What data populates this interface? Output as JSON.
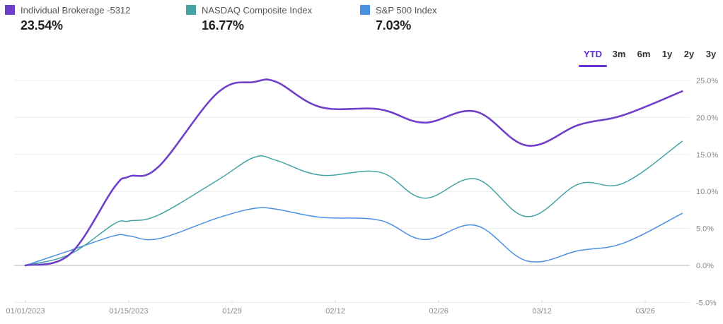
{
  "legend": [
    {
      "label": "Individual Brokerage -5312",
      "value": "23.54%",
      "color": "#6e40c9"
    },
    {
      "label": "NASDAQ Composite Index",
      "value": "16.77%",
      "color": "#46a3a3"
    },
    {
      "label": "S&P 500 Index",
      "value": "7.03%",
      "color": "#4a90e2"
    }
  ],
  "ranges": {
    "active": "YTD",
    "items": [
      "YTD",
      "3m",
      "6m",
      "1y",
      "2y",
      "3y"
    ]
  },
  "colors": {
    "accent": "#6a35d9",
    "brokerage": "#6e40c9",
    "nasdaq": "#46a3a3",
    "sp500": "#4a90e2",
    "grid": "#ececec",
    "zero_line": "#b5b5b5"
  },
  "chart_data": {
    "type": "line",
    "title": "",
    "xlabel": "",
    "ylabel": "",
    "ylim": [
      -5,
      25
    ],
    "grid": true,
    "legend_position": "top",
    "y_ticks": [
      "25.0%",
      "20.0%",
      "15.0%",
      "10.0%",
      "5.0%",
      "0.0%",
      "-5.0%"
    ],
    "y_tick_values": [
      25,
      20,
      15,
      10,
      5,
      0,
      -5
    ],
    "x_ticks": [
      "01/01/2023",
      "01/15/2023",
      "01/29",
      "02/12",
      "02/26",
      "03/12",
      "03/26"
    ],
    "x_tick_days": [
      0,
      14,
      28,
      42,
      56,
      70,
      84
    ],
    "x_days": [
      0,
      6,
      12,
      14,
      18,
      26,
      31,
      34,
      40,
      48,
      54,
      61,
      68,
      75,
      81,
      89
    ],
    "series": [
      {
        "name": "Individual Brokerage -5312",
        "color": "#6e40c9",
        "width": 2.6,
        "values": [
          0,
          1.5,
          10.5,
          12.0,
          13.3,
          23.3,
          24.8,
          24.8,
          21.4,
          21.1,
          19.3,
          20.8,
          16.2,
          19.0,
          20.3,
          23.54
        ]
      },
      {
        "name": "NASDAQ Composite Index",
        "color": "#46a3a3",
        "width": 1.5,
        "values": [
          0,
          1.5,
          5.6,
          6.0,
          6.8,
          11.5,
          14.6,
          14.2,
          12.2,
          12.6,
          9.1,
          11.7,
          6.6,
          11.0,
          11.1,
          16.77
        ]
      },
      {
        "name": "S&P 500 Index",
        "color": "#4a90e2",
        "width": 1.5,
        "values": [
          0,
          2.0,
          4.0,
          4.0,
          3.6,
          6.4,
          7.7,
          7.6,
          6.5,
          6.1,
          3.5,
          5.4,
          0.6,
          2.0,
          3.0,
          7.03
        ]
      }
    ]
  }
}
